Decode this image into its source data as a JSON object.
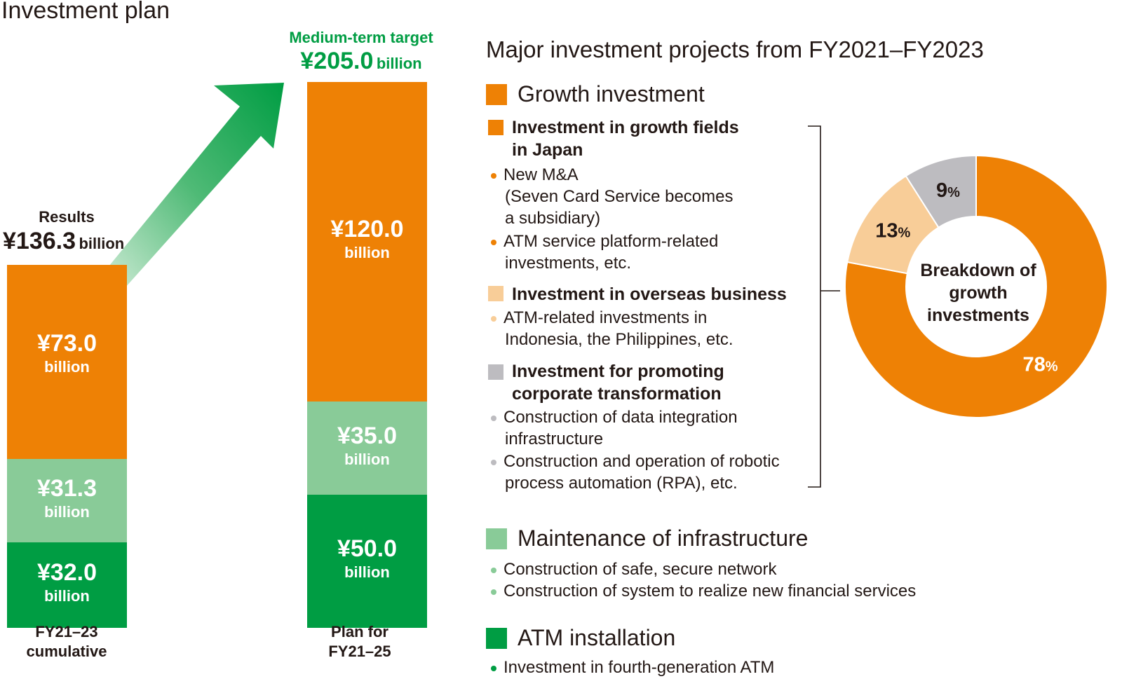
{
  "title": "Investment plan",
  "colors": {
    "growth": "#ee8105",
    "maintenance": "#89cb98",
    "atm": "#009d43",
    "overseas": "#f8cd98",
    "corporate": "#bdbcc0",
    "target_green": "#009d43"
  },
  "results": {
    "label": "Results",
    "total": "¥136.3",
    "unit": "billion",
    "caption_line1": "FY21–23",
    "caption_line2": "cumulative"
  },
  "target": {
    "label": "Medium-term target",
    "total": "¥205.0",
    "unit": "billion",
    "caption_line1": "Plan for",
    "caption_line2": "FY21–25"
  },
  "chart_data": [
    {
      "type": "bar",
      "categories": [
        "FY21–23 cumulative",
        "Plan for FY21–25"
      ],
      "series": [
        {
          "name": "ATM installation",
          "values": [
            32.0,
            50.0
          ],
          "labels": [
            "¥32.0",
            "¥50.0"
          ]
        },
        {
          "name": "Maintenance of infrastructure",
          "values": [
            31.3,
            35.0
          ],
          "labels": [
            "¥31.3",
            "¥35.0"
          ]
        },
        {
          "name": "Growth investment",
          "values": [
            73.0,
            120.0
          ],
          "labels": [
            "¥73.0",
            "¥120.0"
          ]
        }
      ],
      "unit_label": "billion",
      "stacked": true
    },
    {
      "type": "pie",
      "title": "Breakdown of growth investments",
      "labels": [
        "Investment in growth fields in Japan",
        "Investment in overseas business",
        "Investment for promoting corporate transformation"
      ],
      "values": [
        78,
        13,
        9
      ],
      "value_labels": [
        "78",
        "13",
        "9"
      ],
      "unit": "%"
    }
  ],
  "projects": {
    "title": "Major investment projects from FY2021–FY2023",
    "growth": {
      "heading": "Growth investment",
      "japan": {
        "heading_line1": "Investment in growth fields",
        "heading_line2": "in Japan",
        "items": [
          [
            "New M&A",
            "(Seven Card Service becomes",
            "a subsidiary)"
          ],
          [
            "ATM service platform-related",
            "investments, etc."
          ]
        ]
      },
      "overseas": {
        "heading": "Investment in overseas business",
        "items": [
          [
            "ATM-related investments in",
            "Indonesia, the Philippines, etc."
          ]
        ]
      },
      "corporate": {
        "heading_line1": "Investment for promoting",
        "heading_line2": "corporate transformation",
        "items": [
          [
            "Construction of data integration",
            "infrastructure"
          ],
          [
            "Construction and operation of robotic",
            "process automation (RPA), etc."
          ]
        ]
      }
    },
    "maintenance": {
      "heading": "Maintenance of infrastructure",
      "items": [
        "Construction of safe, secure network",
        "Construction of system to realize new financial services"
      ]
    },
    "atm": {
      "heading": "ATM installation",
      "items": [
        "Investment in fourth-generation ATM"
      ]
    }
  },
  "donut": {
    "center_line1": "Breakdown of",
    "center_line2": "growth",
    "center_line3": "investments"
  }
}
